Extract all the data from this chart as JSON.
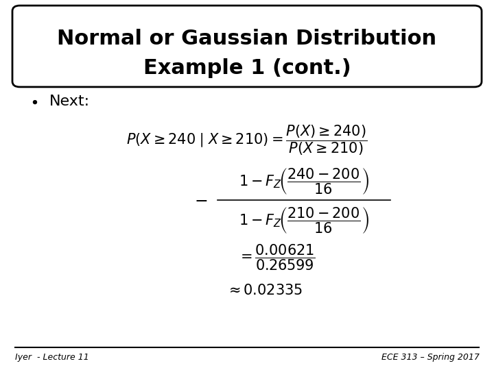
{
  "title_line1": "Normal or Gaussian Distribution",
  "title_line2": "Example 1 (cont.)",
  "bullet_text": "Next:",
  "footer_left": "Iyer  - Lecture 11",
  "footer_right": "ECE 313 – Spring 2017",
  "bg_color": "#ffffff",
  "text_color": "#000000",
  "title_fontsize": 22,
  "bullet_fontsize": 16,
  "formula_fontsize": 15,
  "footer_fontsize": 9
}
